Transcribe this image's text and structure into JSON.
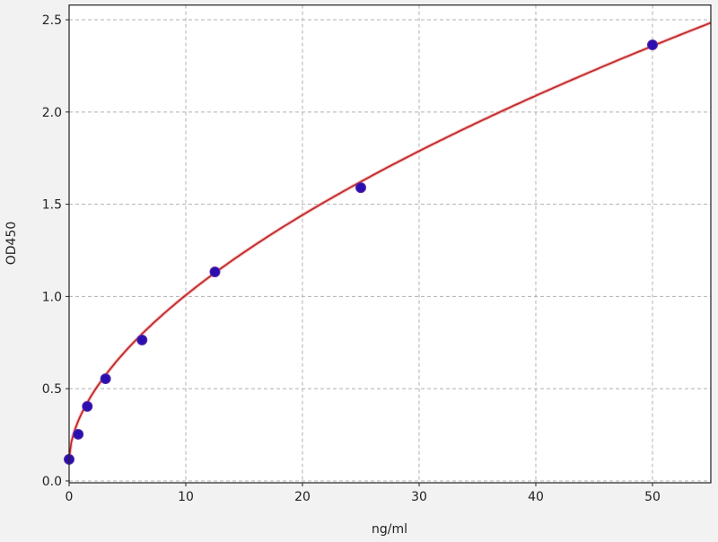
{
  "chart_data": {
    "type": "scatter",
    "title": "",
    "xlabel": "ng/ml",
    "ylabel": "OD450",
    "xlim": [
      0,
      55
    ],
    "ylim": [
      -0.01,
      2.58
    ],
    "xticks": [
      0,
      10,
      20,
      30,
      40,
      50
    ],
    "yticks": [
      0.0,
      0.5,
      1.0,
      1.5,
      2.0,
      2.5
    ],
    "xtick_labels": [
      "0",
      "10",
      "20",
      "30",
      "40",
      "50"
    ],
    "ytick_labels": [
      "0.0",
      "0.5",
      "1.0",
      "1.5",
      "2.0",
      "2.5"
    ],
    "grid": true,
    "legend": "none",
    "points": {
      "x": [
        0,
        0.78,
        1.56,
        3.125,
        6.25,
        12.5,
        25,
        50
      ],
      "y": [
        0.117,
        0.253,
        0.404,
        0.554,
        0.764,
        1.133,
        1.59,
        2.364
      ],
      "color": "#2a0fb0"
    },
    "fit_curve": {
      "color": "#c0282a",
      "samples_x": [
        0,
        0.5,
        1,
        2,
        3,
        5,
        7.5,
        10,
        12.5,
        15,
        20,
        25,
        30,
        35,
        40,
        45,
        50,
        55
      ],
      "samples_y": [
        0.12,
        0.27,
        0.356,
        0.47,
        0.56,
        0.7,
        0.855,
        1.0,
        1.13,
        1.24,
        1.43,
        1.62,
        1.79,
        1.94,
        2.09,
        2.23,
        2.36,
        2.48
      ]
    }
  }
}
